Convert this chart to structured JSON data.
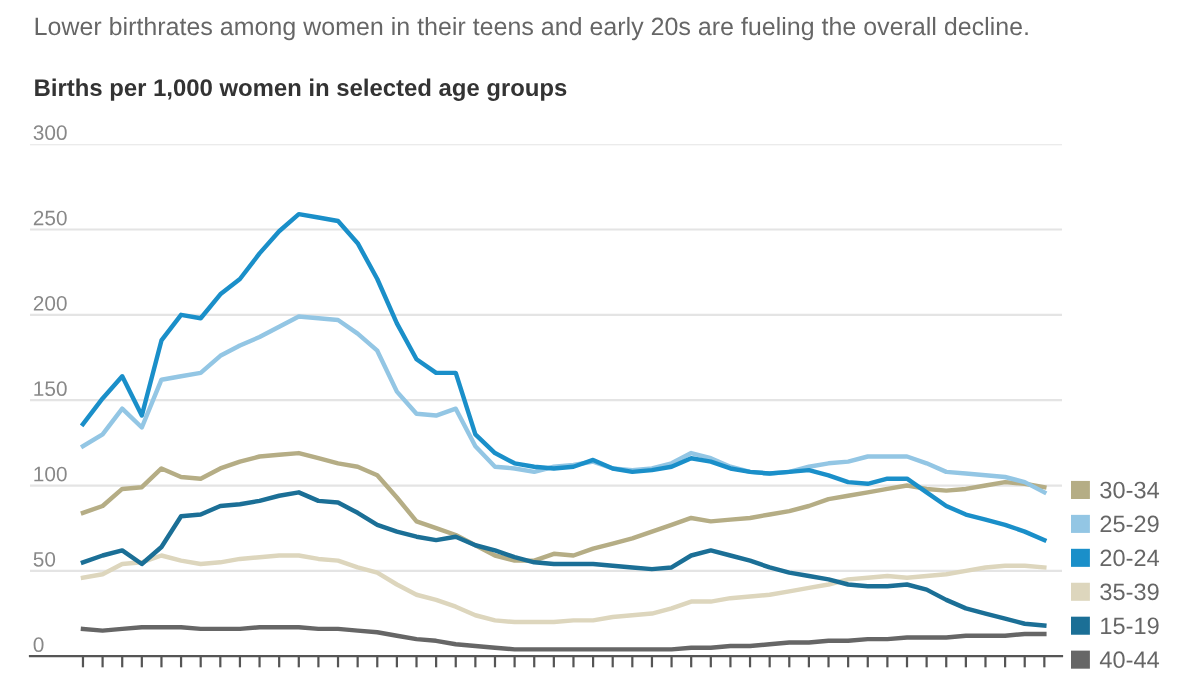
{
  "chart_data": {
    "type": "line",
    "subtitle": "Lower birthrates among women in their teens and early 20s are fueling the overall decline.",
    "ylabel": "Births per 1,000 women in selected age groups",
    "categories": [
      null,
      null,
      null,
      null,
      null,
      null,
      null,
      null,
      null,
      null,
      null,
      null,
      null,
      null,
      null,
      null,
      null,
      null,
      null,
      null,
      null,
      null,
      null,
      null,
      null,
      null,
      null,
      null,
      null,
      null,
      null,
      null,
      null,
      null,
      null,
      null,
      null,
      null,
      null,
      null,
      null,
      null,
      null,
      null,
      null,
      null,
      null,
      null,
      null,
      null
    ],
    "ylim": [
      0,
      300
    ],
    "yticks": [
      0,
      50,
      100,
      150,
      200,
      250,
      300
    ],
    "grid": "y",
    "legend": "bottom right",
    "marker": "none",
    "line_style": "solid",
    "tick_labels": "y",
    "series": [
      {
        "name": "30-34",
        "color": "#b5ad85",
        "values": [
          84,
          88,
          98,
          99,
          110,
          105,
          104,
          110,
          114,
          117,
          118,
          119,
          116,
          113,
          111,
          106,
          93,
          79,
          75,
          71,
          65,
          59,
          56,
          56,
          60,
          59,
          63,
          66,
          69,
          73,
          77,
          81,
          79,
          80,
          81,
          83,
          85,
          88,
          92,
          94,
          96,
          98,
          100,
          98,
          97,
          98,
          100,
          102,
          101,
          99
        ]
      },
      {
        "name": "25-29",
        "color": "#93c6e4",
        "values": [
          123,
          130,
          145,
          134,
          162,
          164,
          166,
          176,
          182,
          187,
          193,
          199,
          198,
          197,
          189,
          179,
          155,
          142,
          141,
          145,
          123,
          111,
          110,
          108,
          111,
          112,
          114,
          110,
          109,
          110,
          113,
          119,
          116,
          111,
          108,
          107,
          108,
          111,
          113,
          114,
          117,
          117,
          117,
          113,
          108,
          107,
          106,
          105,
          102,
          96
        ]
      },
      {
        "name": "20-24",
        "color": "#1a8fc9",
        "values": [
          136,
          151,
          164,
          141,
          185,
          200,
          198,
          212,
          221,
          236,
          249,
          259,
          257,
          255,
          242,
          221,
          195,
          174,
          166,
          166,
          130,
          119,
          113,
          111,
          110,
          111,
          115,
          110,
          108,
          109,
          111,
          116,
          114,
          110,
          108,
          107,
          108,
          109,
          106,
          102,
          101,
          104,
          104,
          96,
          88,
          83,
          80,
          77,
          73,
          68
        ]
      },
      {
        "name": "35-39",
        "color": "#ddd6bd",
        "values": [
          46,
          48,
          54,
          55,
          59,
          56,
          54,
          55,
          57,
          58,
          59,
          59,
          57,
          56,
          52,
          49,
          42,
          36,
          33,
          29,
          24,
          21,
          20,
          20,
          20,
          21,
          21,
          23,
          24,
          25,
          28,
          32,
          32,
          34,
          35,
          36,
          38,
          40,
          42,
          45,
          46,
          47,
          46,
          47,
          48,
          50,
          52,
          53,
          53,
          52
        ]
      },
      {
        "name": "15-19",
        "color": "#1b6f96",
        "values": [
          55,
          59,
          62,
          54,
          64,
          82,
          83,
          88,
          89,
          91,
          94,
          96,
          91,
          90,
          84,
          77,
          73,
          70,
          68,
          70,
          65,
          62,
          58,
          55,
          54,
          54,
          54,
          53,
          52,
          51,
          52,
          59,
          62,
          59,
          56,
          52,
          49,
          47,
          45,
          42,
          41,
          41,
          42,
          39,
          33,
          28,
          25,
          22,
          19,
          18
        ]
      },
      {
        "name": "40-44",
        "color": "#666666",
        "values": [
          16,
          15,
          16,
          17,
          17,
          17,
          16,
          16,
          16,
          17,
          17,
          17,
          16,
          16,
          15,
          14,
          12,
          10,
          9,
          7,
          6,
          5,
          4,
          4,
          4,
          4,
          4,
          4,
          4,
          4,
          4,
          5,
          5,
          6,
          6,
          7,
          8,
          8,
          9,
          9,
          10,
          10,
          11,
          11,
          11,
          12,
          12,
          12,
          13,
          13
        ]
      }
    ]
  }
}
